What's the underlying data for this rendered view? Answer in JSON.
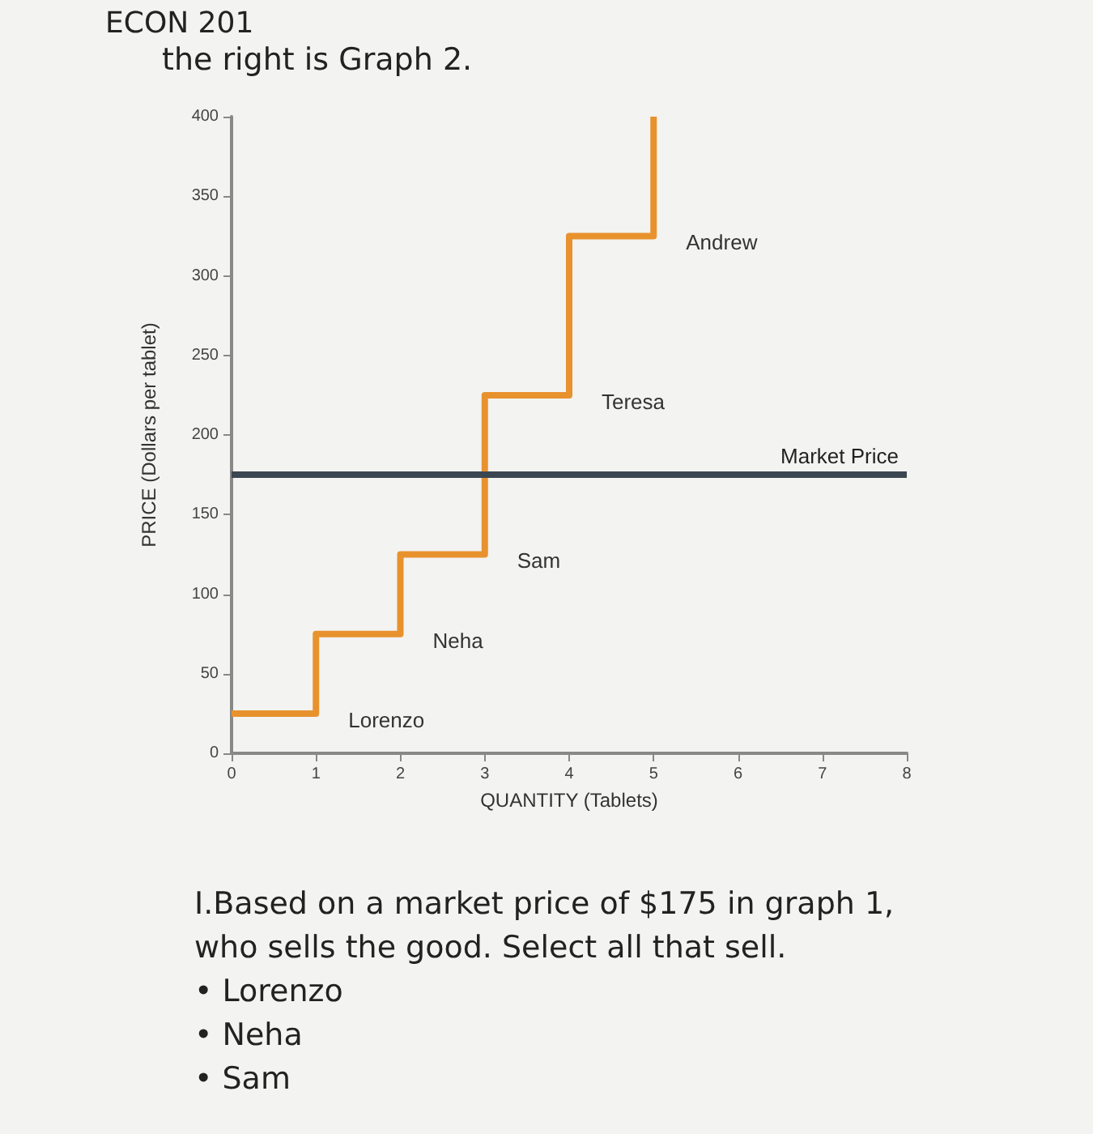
{
  "chart_data": {
    "type": "step",
    "title": "ECON 201",
    "subtitle": "the right is Graph 2.",
    "xlabel": "QUANTITY (Tablets)",
    "ylabel": "PRICE (Dollars per tablet)",
    "series": [
      {
        "x": [
          0,
          1,
          2,
          3,
          4,
          5
        ],
        "values": [
          25,
          75,
          125,
          225,
          325,
          400
        ],
        "color": "#e8922e"
      }
    ],
    "xlim": [
      0,
      8
    ],
    "xticks": [
      0,
      1,
      2,
      3,
      4,
      5,
      6,
      7,
      8
    ],
    "ylim": [
      0,
      400
    ],
    "yticks": [
      0,
      50,
      100,
      150,
      200,
      250,
      300,
      350,
      400
    ],
    "grid": false,
    "marker": "none",
    "line_style": "solid",
    "ref_lines": [
      {
        "axis": "y",
        "value": 175,
        "label": "Market Price",
        "color": "#3b4750"
      }
    ],
    "annotations": [
      "Lorenzo",
      "Neha",
      "Sam",
      "Teresa",
      "Andrew",
      "I.Based on a market price of $175 in graph 1,",
      "who sells the good. Select all that sell.",
      "• Lorenzo",
      "• Neha",
      "• Sam"
    ]
  }
}
